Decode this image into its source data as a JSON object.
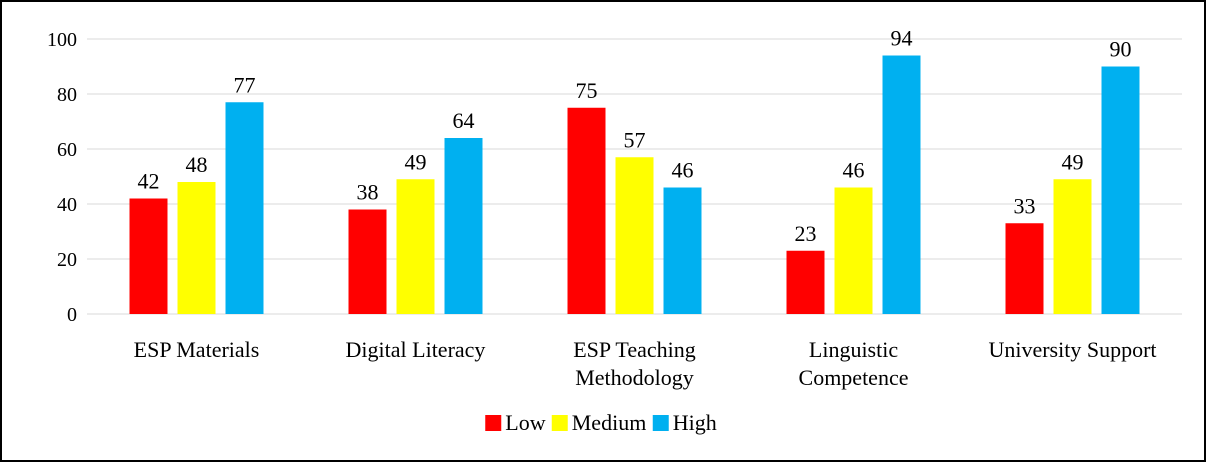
{
  "chart_data": {
    "type": "bar",
    "categories": [
      [
        "ESP Materials"
      ],
      [
        "Digital Literacy"
      ],
      [
        "ESP Teaching",
        "Methodology"
      ],
      [
        "Linguistic",
        "Competence"
      ],
      [
        "University Support"
      ]
    ],
    "series": [
      {
        "name": "Low",
        "color": "#ff0000",
        "values": [
          42,
          38,
          75,
          23,
          33
        ]
      },
      {
        "name": "Medium",
        "color": "#ffff00",
        "values": [
          48,
          49,
          57,
          46,
          49
        ]
      },
      {
        "name": "High",
        "color": "#00b0f0",
        "values": [
          77,
          64,
          46,
          94,
          90
        ]
      }
    ],
    "ylim": [
      0,
      100
    ],
    "yticks": [
      0,
      20,
      40,
      60,
      80,
      100
    ],
    "grid": true,
    "data_labels": true,
    "legend_position": "bottom",
    "title": "",
    "xlabel": "",
    "ylabel": ""
  }
}
